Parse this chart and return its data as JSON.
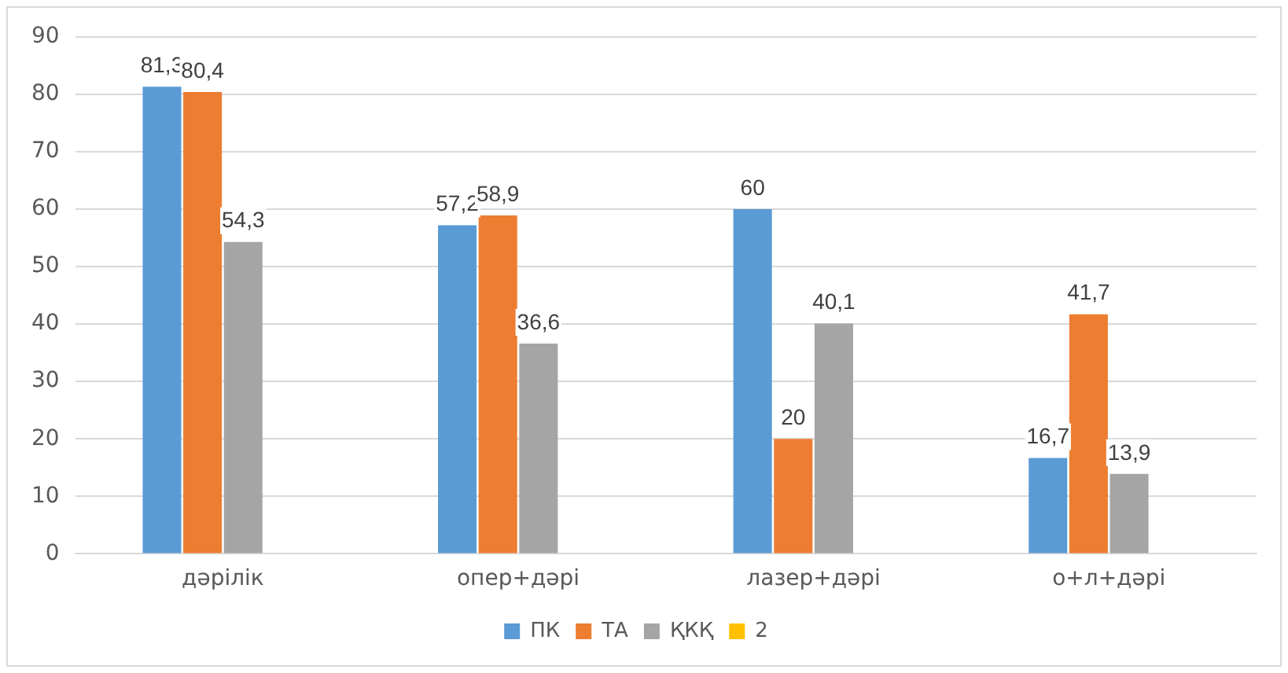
{
  "chart_data": {
    "type": "bar",
    "categories": [
      "дәрілік",
      "опер+дәрі",
      "лазер+дәрі",
      "о+л+дәрі"
    ],
    "series": [
      {
        "name": "ПК",
        "color": "#5b9bd5",
        "values": [
          81.3,
          57.2,
          60,
          16.7
        ],
        "value_labels": [
          "81,3",
          "57,2",
          "60",
          "16,7"
        ]
      },
      {
        "name": "ТА",
        "color": "#ed7d31",
        "values": [
          80.4,
          58.9,
          20,
          41.7
        ],
        "value_labels": [
          "80,4",
          "58,9",
          "20",
          "41,7"
        ]
      },
      {
        "name": "ҚКҚ",
        "color": "#a5a5a5",
        "values": [
          54.3,
          36.6,
          40.1,
          13.9
        ],
        "value_labels": [
          "54,3",
          "36,6",
          "40,1",
          "13,9"
        ]
      },
      {
        "name": "2",
        "color": "#ffc000",
        "values": [
          null,
          null,
          null,
          null
        ]
      }
    ],
    "ylim": [
      0,
      90
    ],
    "yticks": [
      0,
      10,
      20,
      30,
      40,
      50,
      60,
      70,
      80,
      90
    ],
    "grid": "y",
    "legend": "bottom"
  }
}
